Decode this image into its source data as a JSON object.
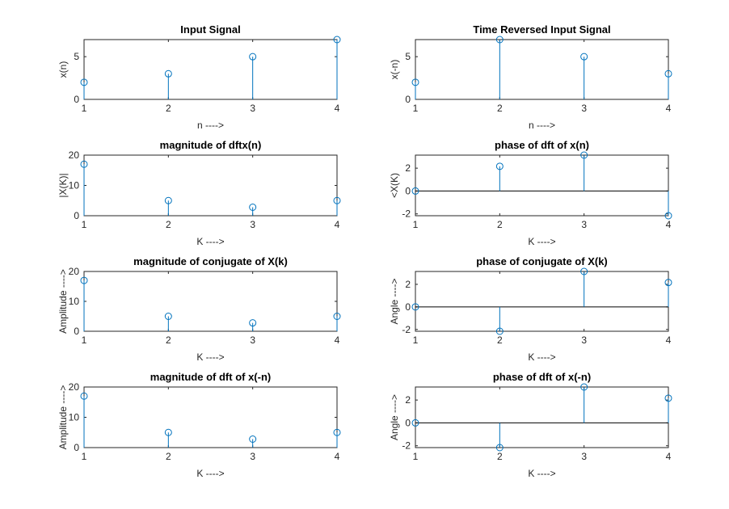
{
  "colors": {
    "stem": "#0072BD",
    "axis": "#262626",
    "baseline": "#000000"
  },
  "chart_data": [
    {
      "type": "stem",
      "title": "Input Signal",
      "xlabel": "n ---->",
      "ylabel": "x(n)",
      "x": [
        1,
        2,
        3,
        4
      ],
      "y": [
        2,
        3,
        5,
        7
      ],
      "xlim": [
        1,
        4
      ],
      "ylim": [
        0,
        7
      ],
      "xticks": [
        1,
        2,
        3,
        4
      ],
      "yticks": [
        0,
        5
      ],
      "baseline": false
    },
    {
      "type": "stem",
      "title": "Time Reversed Input Signal",
      "xlabel": "n ---->",
      "ylabel": "x(-n)",
      "x": [
        1,
        2,
        3,
        4
      ],
      "y": [
        2,
        7,
        5,
        3
      ],
      "xlim": [
        1,
        4
      ],
      "ylim": [
        0,
        7
      ],
      "xticks": [
        1,
        2,
        3,
        4
      ],
      "yticks": [
        0,
        5
      ],
      "baseline": false
    },
    {
      "type": "stem",
      "title": "magnitude of dftx(n)",
      "xlabel": "K ---->",
      "ylabel": "|X(K)|",
      "x": [
        1,
        2,
        3,
        4
      ],
      "y": [
        17,
        5,
        2.8,
        5
      ],
      "xlim": [
        1,
        4
      ],
      "ylim": [
        0,
        20
      ],
      "xticks": [
        1,
        2,
        3,
        4
      ],
      "yticks": [
        0,
        10,
        20
      ],
      "baseline": false
    },
    {
      "type": "stem",
      "title": "phase of dft of x(n)",
      "xlabel": "K ---->",
      "ylabel": "<X(K)",
      "x": [
        1,
        2,
        3,
        4
      ],
      "y": [
        0,
        2.16,
        3.14,
        -2.16
      ],
      "xlim": [
        1,
        4
      ],
      "ylim": [
        -2.16,
        3.14
      ],
      "xticks": [
        1,
        2,
        3,
        4
      ],
      "yticks": [
        -2,
        0,
        2
      ],
      "baseline": true
    },
    {
      "type": "stem",
      "title": "magnitude of conjugate of X(k)",
      "xlabel": "K ---->",
      "ylabel": "Amplitude ---->",
      "x": [
        1,
        2,
        3,
        4
      ],
      "y": [
        17,
        5,
        2.8,
        5
      ],
      "xlim": [
        1,
        4
      ],
      "ylim": [
        0,
        20
      ],
      "xticks": [
        1,
        2,
        3,
        4
      ],
      "yticks": [
        0,
        10,
        20
      ],
      "baseline": false
    },
    {
      "type": "stem",
      "title": "phase of conjugate of X(k)",
      "xlabel": "K ---->",
      "ylabel": "Angle ---->",
      "x": [
        1,
        2,
        3,
        4
      ],
      "y": [
        0,
        -2.16,
        3.14,
        2.16
      ],
      "xlim": [
        1,
        4
      ],
      "ylim": [
        -2.16,
        3.14
      ],
      "xticks": [
        1,
        2,
        3,
        4
      ],
      "yticks": [
        -2,
        0,
        2
      ],
      "baseline": true
    },
    {
      "type": "stem",
      "title": "magnitude of dft of x(-n)",
      "xlabel": "K ---->",
      "ylabel": "Amplitude ---->",
      "x": [
        1,
        2,
        3,
        4
      ],
      "y": [
        17,
        5,
        2.8,
        5
      ],
      "xlim": [
        1,
        4
      ],
      "ylim": [
        0,
        20
      ],
      "xticks": [
        1,
        2,
        3,
        4
      ],
      "yticks": [
        0,
        10,
        20
      ],
      "baseline": false
    },
    {
      "type": "stem",
      "title": "phase of dft of x(-n)",
      "xlabel": "K ---->",
      "ylabel": "Angle ---->",
      "x": [
        1,
        2,
        3,
        4
      ],
      "y": [
        0,
        -2.16,
        3.14,
        2.16
      ],
      "xlim": [
        1,
        4
      ],
      "ylim": [
        -2.16,
        3.14
      ],
      "xticks": [
        1,
        2,
        3,
        4
      ],
      "yticks": [
        -2,
        0,
        2
      ],
      "baseline": true
    }
  ]
}
